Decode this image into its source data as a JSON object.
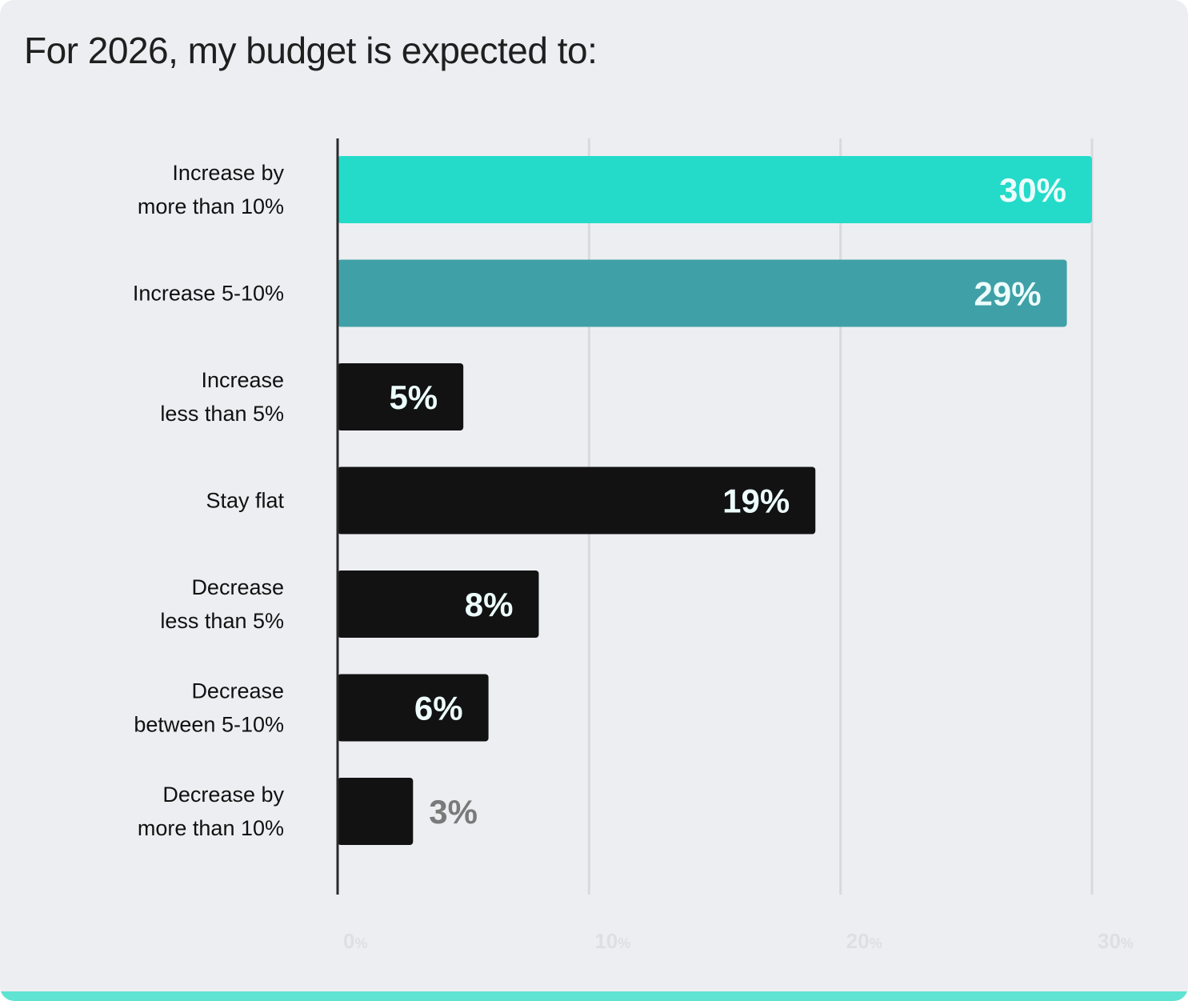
{
  "chart_data": {
    "type": "bar",
    "orientation": "horizontal",
    "title": "For 2026, my budget is expected to:",
    "xlabel": "",
    "ylabel": "",
    "xlim": [
      0,
      30
    ],
    "grid": true,
    "ticks": [
      {
        "value": 0,
        "num": "0",
        "unit": "%"
      },
      {
        "value": 10,
        "num": "10",
        "unit": "%"
      },
      {
        "value": 20,
        "num": "20",
        "unit": "%"
      },
      {
        "value": 30,
        "num": "30",
        "unit": "%"
      }
    ],
    "categories": [
      [
        "Increase by",
        "more than 10%"
      ],
      [
        "Increase 5-10%"
      ],
      [
        "Increase",
        "less than 5%"
      ],
      [
        "Stay flat"
      ],
      [
        "Decrease",
        "less than 5%"
      ],
      [
        "Decrease",
        "between 5-10%"
      ],
      [
        "Decrease by",
        "more than 10%"
      ]
    ],
    "values": [
      30,
      29,
      5,
      19,
      8,
      6,
      3
    ],
    "value_labels": [
      "30%",
      "29%",
      "5%",
      "19%",
      "8%",
      "6%",
      "3%"
    ],
    "value_label_placement": [
      "inside",
      "inside",
      "inside",
      "inside",
      "inside",
      "inside",
      "outside"
    ],
    "bar_colors": [
      "#24dbc9",
      "#40a0a7",
      "#121212",
      "#121212",
      "#121212",
      "#121212",
      "#121212"
    ],
    "label_colors": {
      "inside": "#ecfdfb",
      "outside": "#7a7a7a"
    }
  },
  "colors": {
    "background": "#edeef1",
    "gridline": "#d9dadd",
    "axis": "#2a2a2a",
    "tick_text": "#dedfe2",
    "accent_bottom": "#5fe3d2"
  }
}
